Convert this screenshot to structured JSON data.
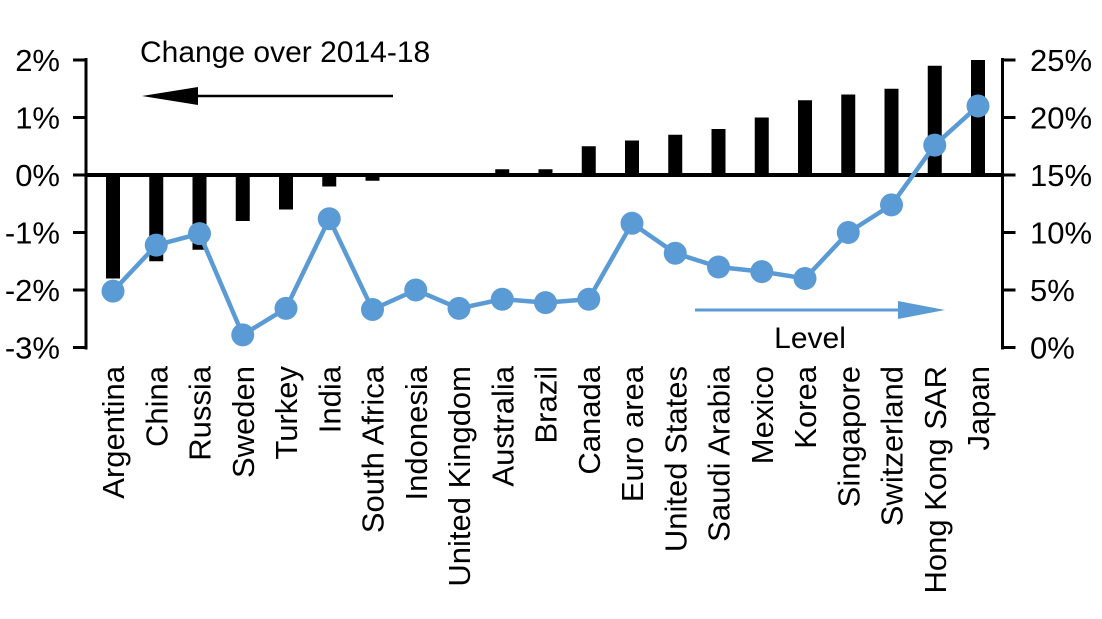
{
  "chart_data": {
    "type": "bar",
    "subtype": "dual-axis bar + line (marker line on secondary axis)",
    "title": "",
    "categories": [
      "Argentina",
      "China",
      "Russia",
      "Sweden",
      "Turkey",
      "India",
      "South Africa",
      "Indonesia",
      "United Kingdom",
      "Australia",
      "Brazil",
      "Canada",
      "Euro area",
      "United States",
      "Saudi Arabia",
      "Mexico",
      "Korea",
      "Singapore",
      "Switzerland",
      "Hong Kong SAR",
      "Japan"
    ],
    "series": [
      {
        "name": "Change over 2014-18",
        "type": "bar",
        "axis": "left",
        "color": "#000000",
        "values": [
          -1.8,
          -1.5,
          -1.3,
          -0.8,
          -0.6,
          -0.2,
          -0.1,
          0.0,
          0.0,
          0.1,
          0.1,
          0.5,
          0.6,
          0.7,
          0.8,
          1.0,
          1.3,
          1.4,
          1.5,
          1.9,
          2.0
        ]
      },
      {
        "name": "Level",
        "type": "line",
        "axis": "right",
        "color": "#5B9BD5",
        "values": [
          4.9,
          8.9,
          9.9,
          1.1,
          3.4,
          11.2,
          3.3,
          5.0,
          3.4,
          4.2,
          3.9,
          4.2,
          10.8,
          8.2,
          7.0,
          6.6,
          6.0,
          10.0,
          12.4,
          17.6,
          21.0
        ]
      }
    ],
    "left_axis": {
      "min": -3,
      "max": 2,
      "tick_values": [
        2,
        1,
        0,
        -1,
        -2,
        -3
      ],
      "tick_labels": [
        "2%",
        "1%",
        "0%",
        "-1%",
        "-2%",
        "-3%"
      ]
    },
    "right_axis": {
      "min": 0,
      "max": 25,
      "tick_values": [
        25,
        20,
        15,
        10,
        5,
        0
      ],
      "tick_labels": [
        "25%",
        "20%",
        "15%",
        "10%",
        "5%",
        "0%"
      ]
    },
    "annotations": {
      "left_label": "Change over 2014-18",
      "left_arrow_direction": "left",
      "right_label": "Level",
      "right_arrow_direction": "right"
    },
    "colors": {
      "bar": "#000000",
      "line": "#5B9BD5",
      "axis": "#000000",
      "background": "#ffffff"
    },
    "layout_hints": {
      "grid": "off",
      "bars_baseline_left_value": 0,
      "baseline_aligns_with_right_value": 15,
      "category_labels_rotation_deg": 90
    }
  }
}
